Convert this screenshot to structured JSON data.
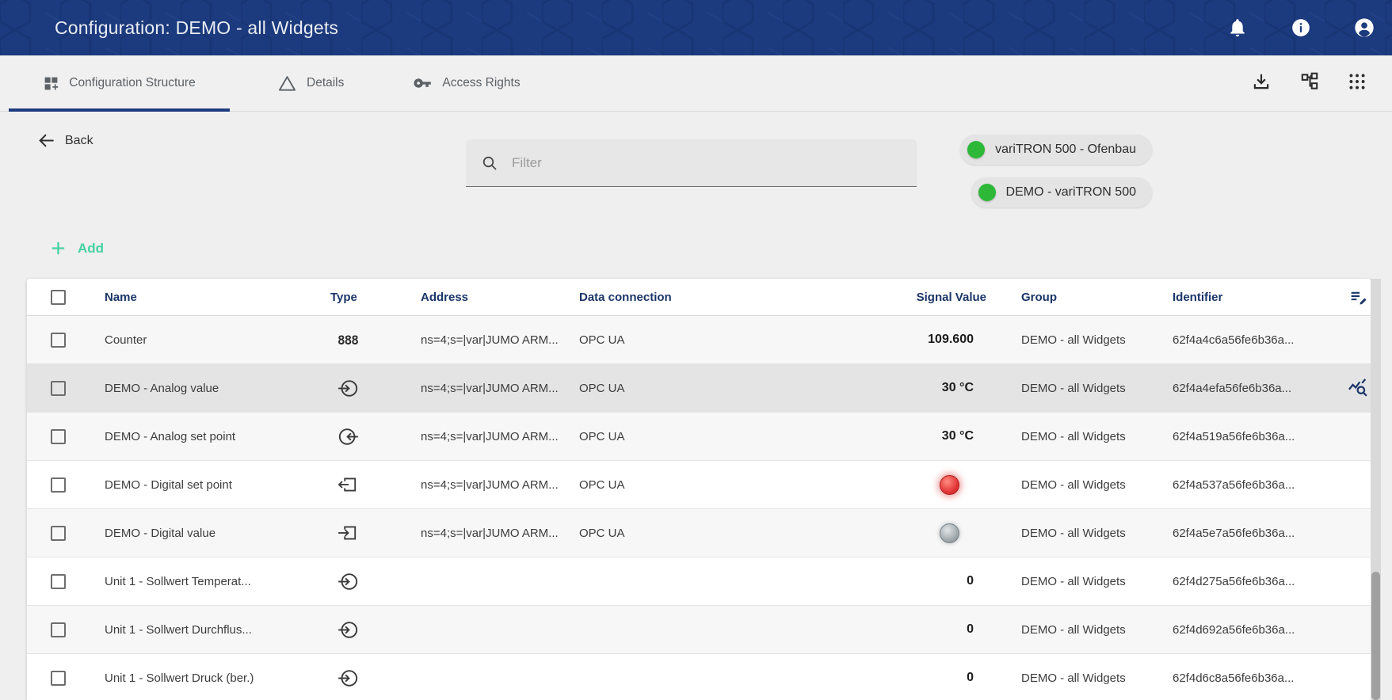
{
  "colors": {
    "topbar_navy": "#1c3a7e",
    "accent_teal": "#45d2a2",
    "status_green": "#2eb838",
    "led_red": "#e23434",
    "led_gray": "#9aa3a8",
    "table_header_text": "#1b3668"
  },
  "topbar": {
    "title": "Configuration: DEMO - all Widgets",
    "icons": [
      "bell-icon",
      "info-icon",
      "account-circle-icon"
    ]
  },
  "tabs": [
    {
      "label": "Configuration Structure",
      "icon": "dashboard-customize-icon",
      "active": true
    },
    {
      "label": "Details",
      "icon": "warning-triangle-icon",
      "active": false
    },
    {
      "label": "Access Rights",
      "icon": "key-icon",
      "active": false
    }
  ],
  "tab_actions": [
    "download-icon",
    "schema-icon",
    "apps-grid-icon"
  ],
  "toolbar": {
    "back_label": "Back",
    "filter_placeholder": "Filter",
    "add_label": "Add"
  },
  "status_chips": [
    {
      "label": "variTRON 500 - Ofenbau",
      "state_color": "#2eb838"
    },
    {
      "label": "DEMO - variTRON 500",
      "state_color": "#2eb838"
    }
  ],
  "table": {
    "columns": [
      "Name",
      "Type",
      "Address",
      "Data connection",
      "Signal Value",
      "Group",
      "Identifier"
    ],
    "header_action_icon": "edit-list-icon",
    "rows": [
      {
        "name": "Counter",
        "type_icon": "counter-display-icon",
        "address": "ns=4;s=|var|JUMO ARM...",
        "data_connection": "OPC UA",
        "signal_value": "109.600",
        "group": "DEMO - all Widgets",
        "identifier": "62f4a4c6a56fe6b36a...",
        "highlighted": false
      },
      {
        "name": "DEMO - Analog value",
        "type_icon": "analog-input-icon",
        "address": "ns=4;s=|var|JUMO ARM...",
        "data_connection": "OPC UA",
        "signal_value": "30 °C",
        "group": "DEMO - all Widgets",
        "identifier": "62f4a4efa56fe6b36a...",
        "highlighted": true,
        "row_action_icon": "query-stats-icon"
      },
      {
        "name": "DEMO - Analog set point",
        "type_icon": "analog-output-icon",
        "address": "ns=4;s=|var|JUMO ARM...",
        "data_connection": "OPC UA",
        "signal_value": "30 °C",
        "group": "DEMO - all Widgets",
        "identifier": "62f4a519a56fe6b36a...",
        "highlighted": false
      },
      {
        "name": "DEMO - Digital set point",
        "type_icon": "digital-output-icon",
        "address": "ns=4;s=|var|JUMO ARM...",
        "data_connection": "OPC UA",
        "signal_led": "red",
        "group": "DEMO - all Widgets",
        "identifier": "62f4a537a56fe6b36a...",
        "highlighted": false
      },
      {
        "name": "DEMO - Digital value",
        "type_icon": "digital-input-icon",
        "address": "ns=4;s=|var|JUMO ARM...",
        "data_connection": "OPC UA",
        "signal_led": "gray",
        "group": "DEMO - all Widgets",
        "identifier": "62f4a5e7a56fe6b36a...",
        "highlighted": false
      },
      {
        "name": "Unit 1 - Sollwert Temperat...",
        "type_icon": "analog-input-icon",
        "address": "",
        "data_connection": "",
        "signal_value": "0",
        "group": "DEMO - all Widgets",
        "identifier": "62f4d275a56fe6b36a...",
        "highlighted": false
      },
      {
        "name": "Unit 1 - Sollwert Durchflus...",
        "type_icon": "analog-input-icon",
        "address": "",
        "data_connection": "",
        "signal_value": "0",
        "group": "DEMO - all Widgets",
        "identifier": "62f4d692a56fe6b36a...",
        "highlighted": false
      },
      {
        "name": "Unit 1 - Sollwert Druck (ber.)",
        "type_icon": "analog-input-icon",
        "address": "",
        "data_connection": "",
        "signal_value": "0",
        "group": "DEMO - all Widgets",
        "identifier": "62f4d6c8a56fe6b36a...",
        "highlighted": false
      }
    ]
  }
}
